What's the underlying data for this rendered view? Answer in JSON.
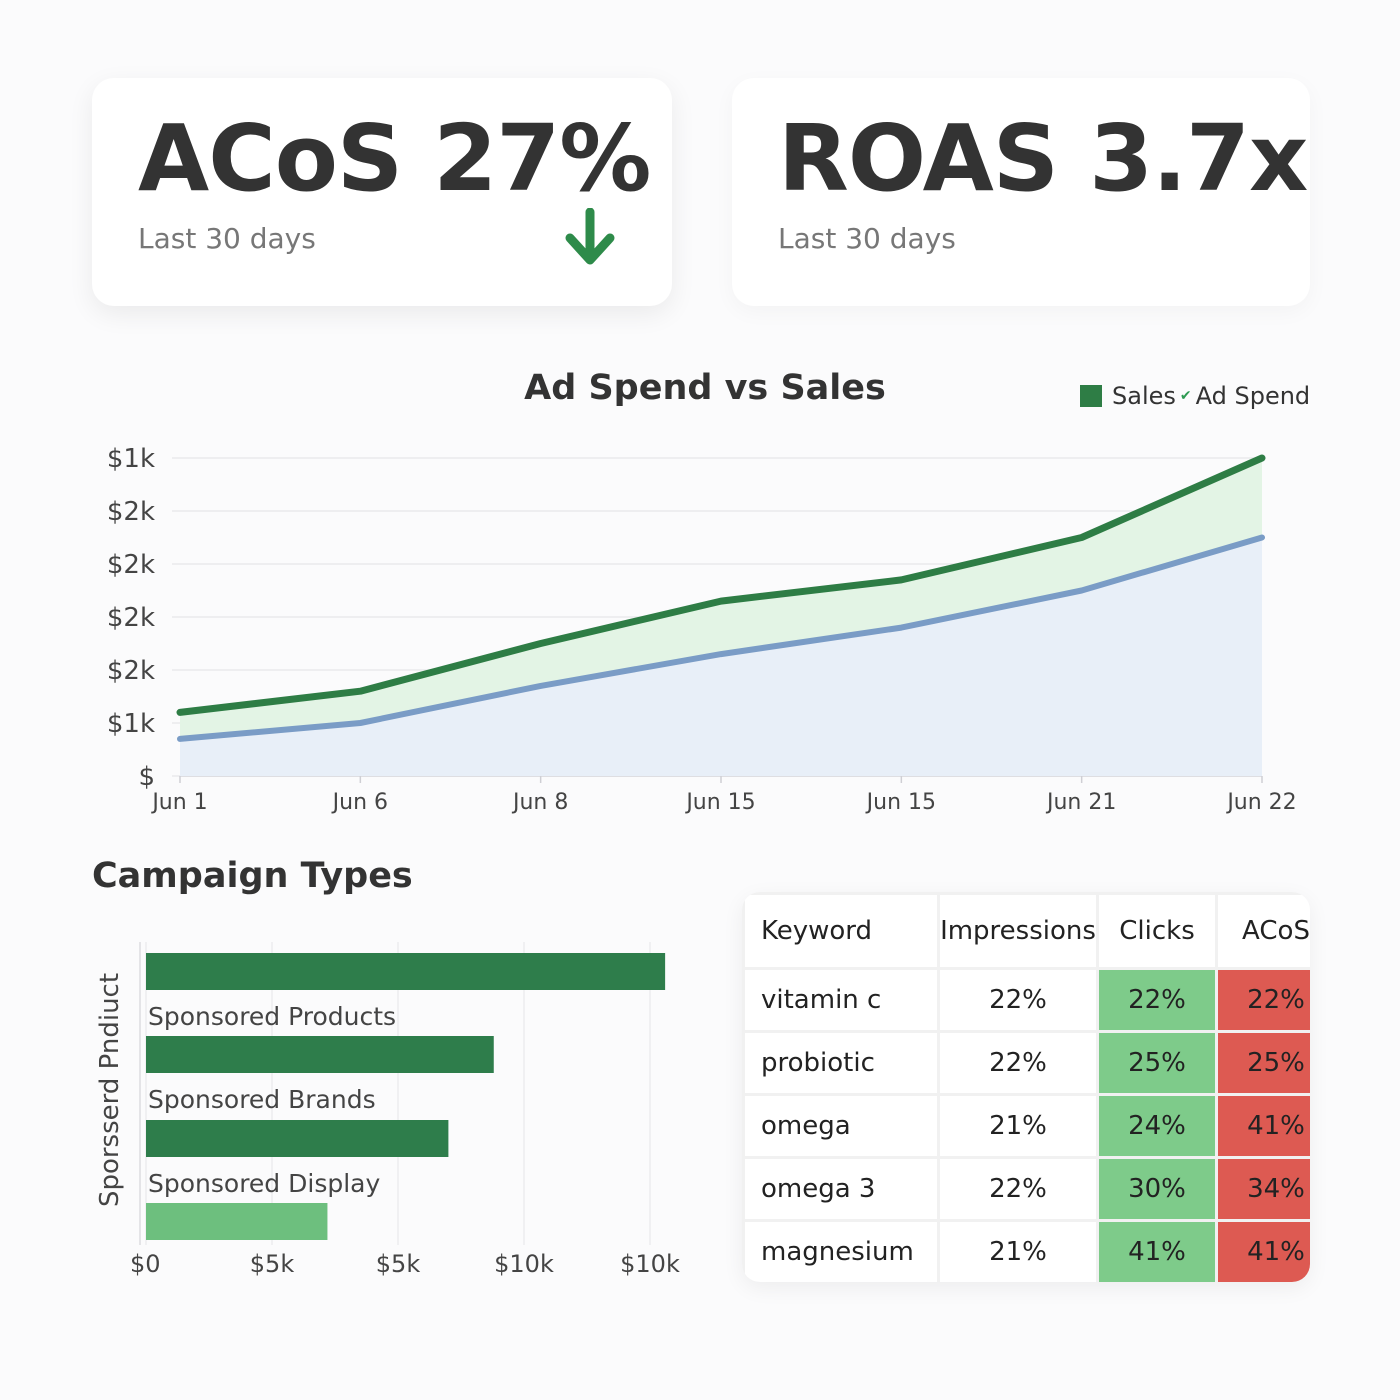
{
  "kpis": {
    "acos": {
      "value": "ACoS 27%",
      "period": "Last 30 days",
      "trend_icon": "arrow-down-icon",
      "trend_color": "#2e8b4a"
    },
    "roas": {
      "value": "ROAS 3.7x",
      "period": "Last 30 days"
    }
  },
  "colors": {
    "sales": "#2e7d45",
    "sales_fill": "#e3f4e5",
    "ad_spend": "#7a9cc6",
    "ad_spend_fill": "#e8eff8",
    "bar_dark": "#2e7d4b",
    "bar_light": "#6dbf7e",
    "clicks_cell": "#7ecb8a",
    "acos_cell": "#dd5a52"
  },
  "chart_data": [
    {
      "type": "area",
      "title": "Ad Spend vs Sales",
      "legend": {
        "placement": "top-right",
        "entries": [
          "Sales",
          "Ad Spend"
        ]
      },
      "x": [
        "Jun 1",
        "Jun 6",
        "Jun 8",
        "Jun 15",
        "Jun 15",
        "Jun 21",
        "Jun 22"
      ],
      "y_tick_labels": [
        "$",
        "$1k",
        "$2k",
        "$2k",
        "$2k",
        "$2k",
        "$1k"
      ],
      "ylim": [
        0,
        6
      ],
      "grid": true,
      "series": [
        {
          "name": "Sales",
          "values": [
            1.2,
            1.6,
            2.5,
            3.3,
            3.7,
            4.5,
            6.0
          ]
        },
        {
          "name": "Ad Spend",
          "values": [
            0.7,
            1.0,
            1.7,
            2.3,
            2.8,
            3.5,
            4.5
          ]
        }
      ]
    },
    {
      "type": "bar",
      "orientation": "horizontal",
      "title": "Campaign Types",
      "ylabel": "Sporsserd Pndiuct",
      "categories": [
        "Sponsored Products",
        "Sponsored Brands",
        "Sponsored Display",
        ""
      ],
      "values": [
        10.3,
        6.9,
        6.0,
        3.6
      ],
      "x_tick_labels": [
        "$0",
        "$5k",
        "$5k",
        "$10k",
        "$10k"
      ],
      "xlim": [
        0,
        10
      ],
      "grid": true
    },
    {
      "type": "table",
      "columns": [
        "Keyword",
        "Impressions",
        "Clicks",
        "ACoS"
      ],
      "rows": [
        [
          "vitamin c",
          "22%",
          "22%",
          "22%"
        ],
        [
          "probiotic",
          "22%",
          "25%",
          "25%"
        ],
        [
          "omega",
          "21%",
          "24%",
          "41%"
        ],
        [
          "omega 3",
          "22%",
          "30%",
          "34%"
        ],
        [
          "magnesium",
          "21%",
          "41%",
          "41%"
        ]
      ]
    }
  ]
}
